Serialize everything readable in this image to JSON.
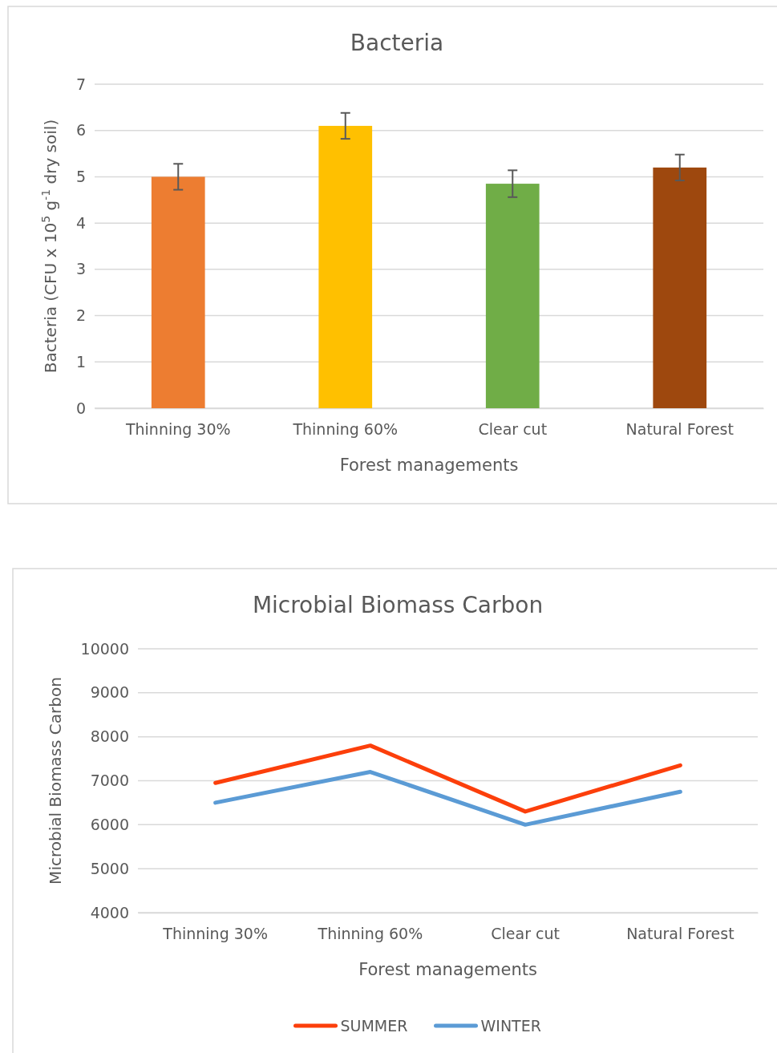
{
  "chart_data": [
    {
      "type": "bar",
      "title": "Bacteria",
      "xlabel": "Forest managements",
      "ylabel": "Bacteria (CFU x 10$^{5}$ g$^{-1}$ dry soil)",
      "categories": [
        "Thinning 30%",
        "Thinning 60%",
        "Clear cut",
        "Natural Forest"
      ],
      "values": [
        5.0,
        6.1,
        4.85,
        5.2
      ],
      "colors": [
        "#ed7d31",
        "#ffc000",
        "#70ad47",
        "#9e480e"
      ],
      "errors": [
        0.28,
        0.28,
        0.29,
        0.28
      ],
      "ylim": [
        0,
        7
      ],
      "yticks": [
        0,
        1,
        2,
        3,
        4,
        5,
        6,
        7
      ],
      "grid": "y",
      "legend": false
    },
    {
      "type": "line",
      "title": "Microbial Biomass Carbon",
      "xlabel": "Forest managements",
      "ylabel": "Microbial Biomass Carbon",
      "categories": [
        "Thinning 30%",
        "Thinning 60%",
        "Clear cut",
        "Natural Forest"
      ],
      "series": [
        {
          "name": "SUMMER",
          "color": "#fc3f0b",
          "values": [
            6950,
            7800,
            6300,
            7350
          ]
        },
        {
          "name": "WINTER",
          "color": "#5b9bd5",
          "values": [
            6500,
            7200,
            6000,
            6750
          ]
        }
      ],
      "ylim": [
        4000,
        10000
      ],
      "yticks": [
        4000,
        5000,
        6000,
        7000,
        8000,
        9000,
        10000
      ],
      "grid": "y",
      "legend": "bottom",
      "marker": "none",
      "line_style": "solid"
    }
  ]
}
